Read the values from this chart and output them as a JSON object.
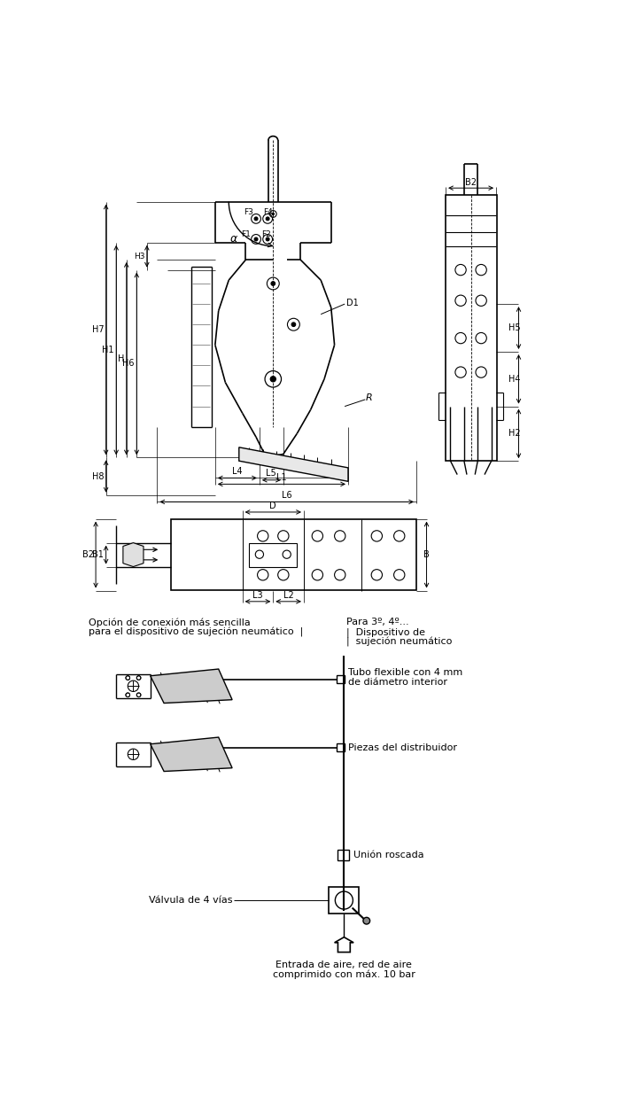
{
  "bg_color": "#ffffff",
  "line_color": "#000000",
  "fig_width": 7.27,
  "fig_height": 12.55,
  "dpi": 100,
  "annotations": {
    "label1_line1": "Opción de conexión más sencilla",
    "label1_line2": "para el dispositivo de sujeción neumático  |",
    "label2_line1": "Para 3º, 4º...",
    "label2_line2": "Dispositivo de",
    "label2_line3": "sujeción neumático",
    "label3_line1": "Tubo flexible con 4 mm",
    "label3_line2": "de diámetro interior",
    "label4": "Piezas del distribuidor",
    "label5": "Unión roscada",
    "label6": "Válvula de 4 vías",
    "label7_line1": "Entrada de aire, red de aire",
    "label7_line2": "comprimido con máx. 10 bar"
  }
}
